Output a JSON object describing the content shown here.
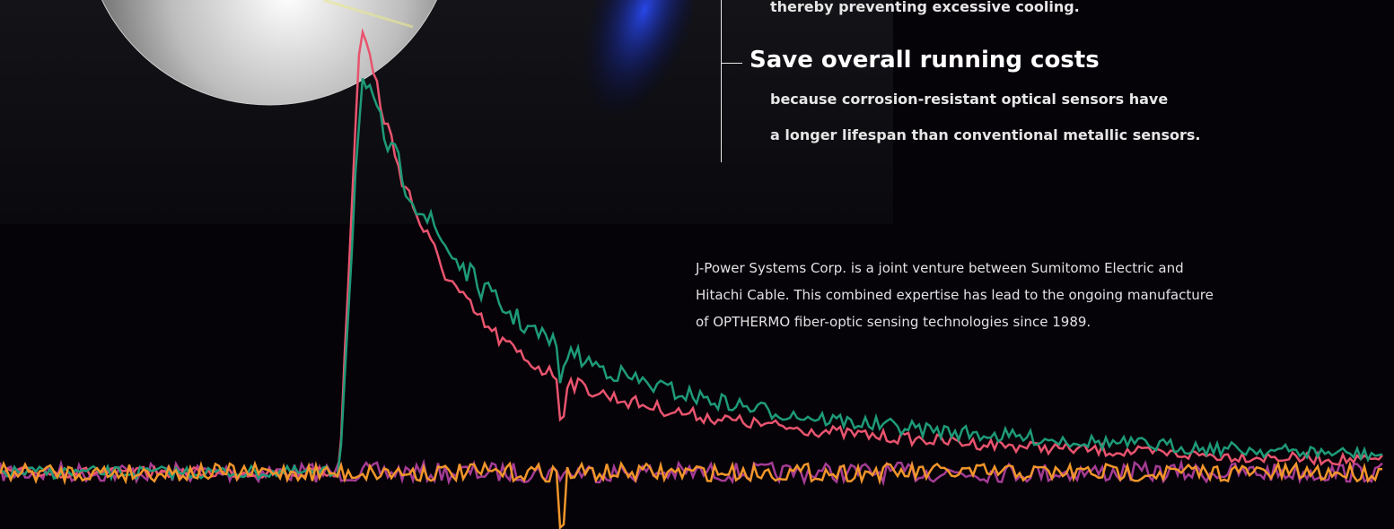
{
  "features": [
    {
      "lines": [
        "thereby preventing excessive cooling."
      ]
    },
    {
      "title": "Save overall running costs",
      "lines": [
        "because corrosion-resistant optical sensors have",
        "a longer lifespan than conventional metallic sensors."
      ]
    }
  ],
  "about": {
    "lines": [
      "J-Power Systems Corp. is a joint venture between Sumitomo Electric and",
      "Hitachi Cable. This combined expertise has lead to the ongoing manufacture",
      "of OPTHERMO fiber-optic sensing technologies since 1989."
    ]
  }
}
